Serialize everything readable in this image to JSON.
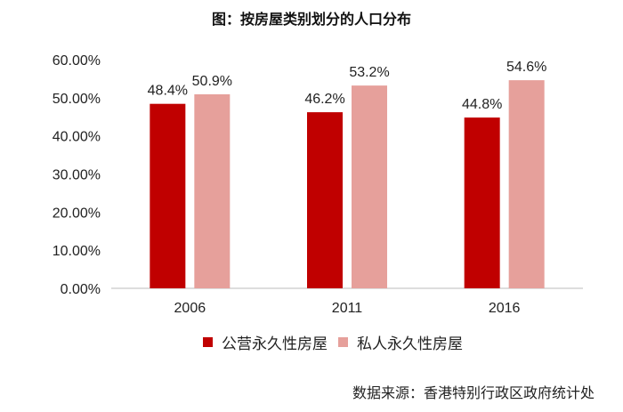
{
  "chart_data": {
    "type": "bar",
    "title": "图：按房屋类别划分的人口分布",
    "categories": [
      "2006",
      "2011",
      "2016"
    ],
    "series": [
      {
        "name": "公营永久性房屋",
        "values": [
          48.4,
          46.2,
          44.8
        ],
        "labels": [
          "48.4%",
          "46.2%",
          "44.8%"
        ],
        "color": "#c00000"
      },
      {
        "name": "私人永久性房屋",
        "values": [
          50.9,
          53.2,
          54.6
        ],
        "labels": [
          "50.9%",
          "53.2%",
          "54.6%"
        ],
        "color": "#e6a09b"
      }
    ],
    "ylim": [
      0,
      60
    ],
    "yticks": [
      "0.00%",
      "10.00%",
      "20.00%",
      "30.00%",
      "40.00%",
      "50.00%",
      "60.00%"
    ],
    "grid": false,
    "legend": "bottom",
    "source": "数据来源：香港特别行政区政府统计处"
  }
}
